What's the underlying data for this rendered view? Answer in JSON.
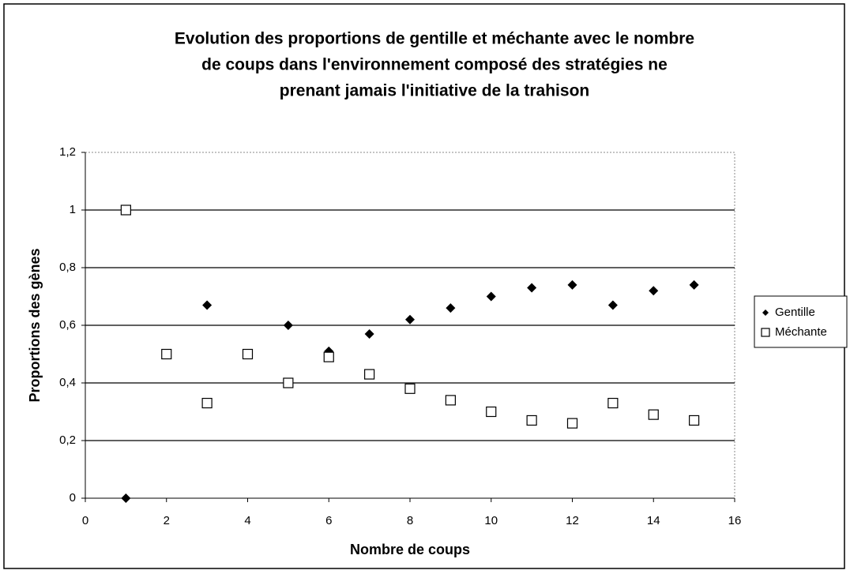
{
  "chart_data": {
    "type": "scatter",
    "title": [
      "Evolution des proportions de gentille et méchante avec le nombre",
      "de coups dans l'environnement composé des stratégies ne",
      "prenant jamais l'initiative de la trahison"
    ],
    "x_label": "Nombre de  coups",
    "y_label": "Proportions des gènes",
    "xlim": [
      0,
      16
    ],
    "xticks": [
      0,
      2,
      4,
      6,
      8,
      10,
      12,
      14,
      16
    ],
    "ylim": [
      0,
      1.2
    ],
    "yticks": [
      0,
      {
        "value": 0.2,
        "label": "0,2"
      },
      {
        "value": 0.4,
        "label": "0,4"
      },
      {
        "value": 0.6,
        "label": "0,6"
      },
      {
        "value": 0.8,
        "label": "0,8"
      },
      1,
      {
        "value": 1.2,
        "label": "1,2"
      }
    ],
    "grid": true,
    "legend": "right",
    "series": [
      {
        "name": "Gentille",
        "color": "#000000",
        "marker": "diamond",
        "x": [
          1,
          3,
          5,
          6,
          7,
          8,
          9,
          10,
          11,
          12,
          13,
          14,
          15
        ],
        "values": [
          0,
          0.67,
          0.6,
          0.51,
          0.57,
          0.62,
          0.66,
          0.7,
          0.73,
          0.74,
          0.67,
          0.72,
          0.74
        ]
      },
      {
        "name": "Méchante",
        "color": "#000000",
        "marker": "square",
        "x": [
          1,
          2,
          3,
          4,
          5,
          6,
          7,
          8,
          9,
          10,
          11,
          12,
          13,
          14,
          15
        ],
        "values": [
          1,
          0.5,
          0.33,
          0.5,
          0.4,
          0.49,
          0.43,
          0.38,
          0.34,
          0.3,
          0.27,
          0.26,
          0.33,
          0.29,
          0.27
        ]
      }
    ]
  }
}
